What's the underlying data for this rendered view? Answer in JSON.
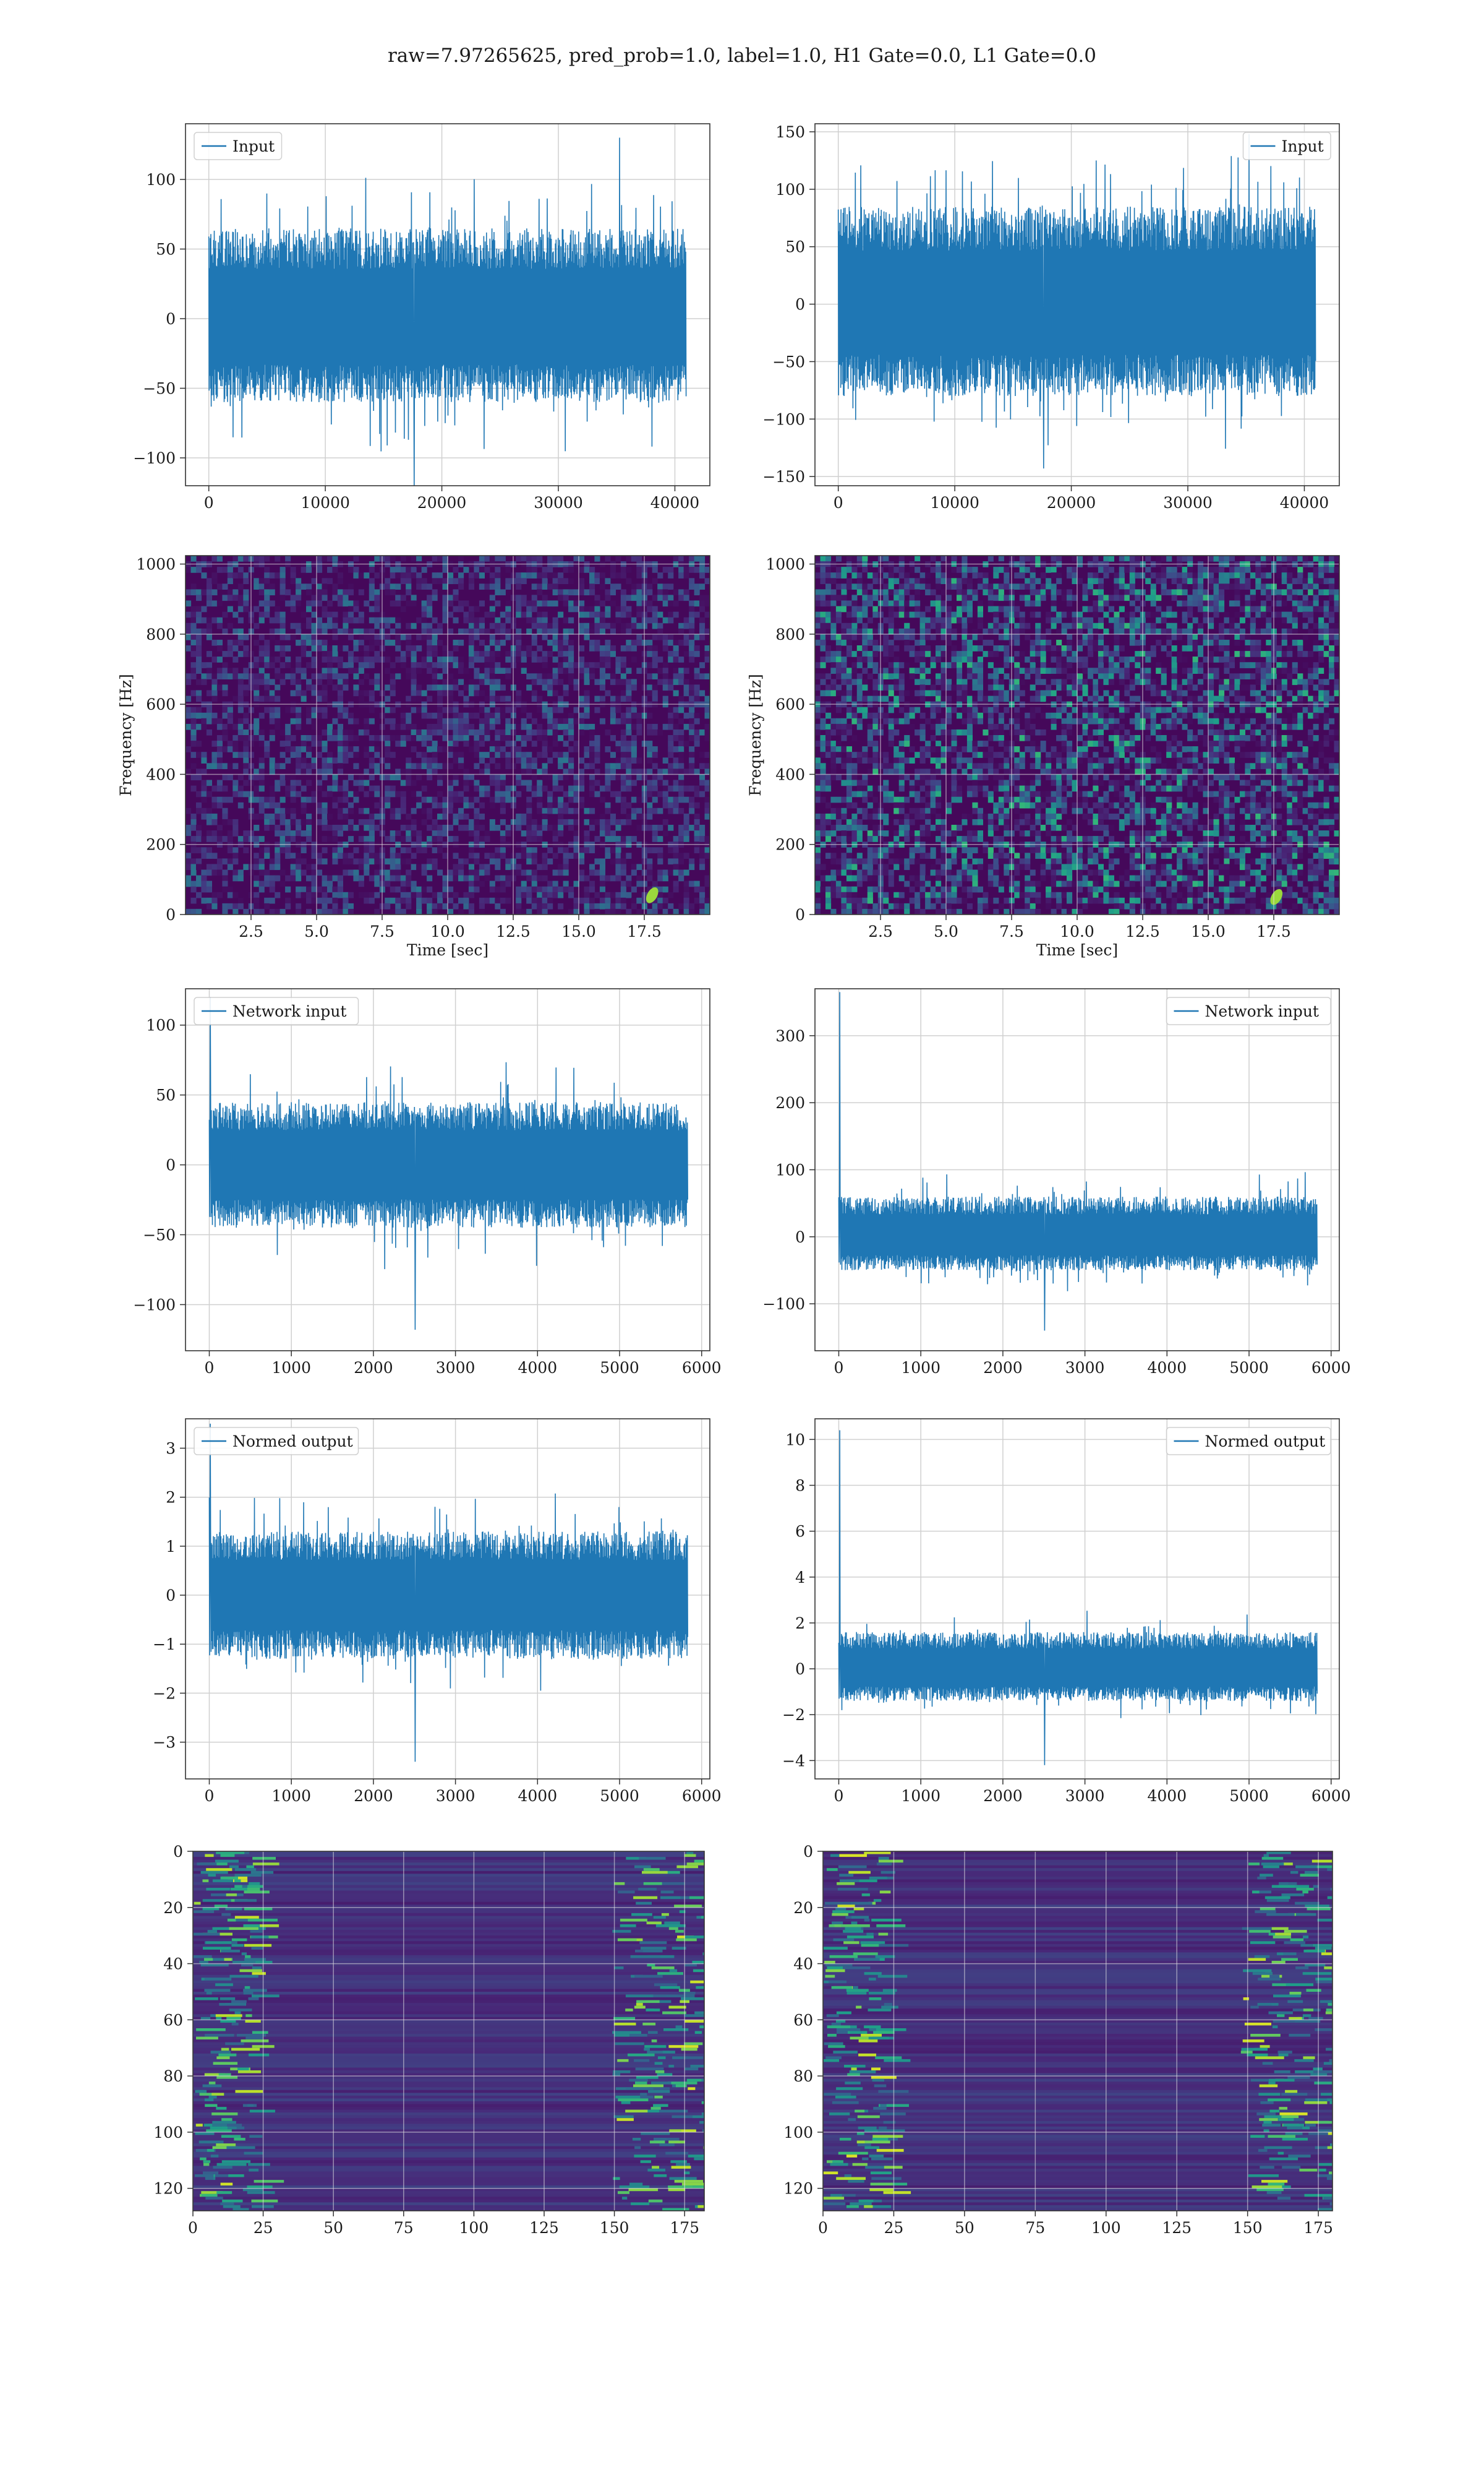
{
  "figure": {
    "suptitle": "raw=7.97265625, pred_prob=1.0, label=1.0, H1 Gate=0.0, L1 Gate=0.0",
    "line_color": "#1f77b4"
  },
  "chart_data": [
    {
      "id": "h1-input",
      "type": "line",
      "column": "left",
      "row": 0,
      "series": [
        {
          "name": "Input"
        }
      ],
      "legend": "upper left",
      "xlim": [
        -2000,
        43000
      ],
      "ylim": [
        -120,
        140
      ],
      "xticks": [
        0,
        10000,
        20000,
        30000,
        40000
      ],
      "yticks": [
        -100,
        -50,
        0,
        50,
        100
      ],
      "x_range": [
        0,
        40960
      ],
      "core_amplitude": [
        -60,
        65
      ],
      "peaks": [
        130,
        -120
      ],
      "grid": true,
      "xlabel": "",
      "ylabel": ""
    },
    {
      "id": "l1-input",
      "type": "line",
      "column": "right",
      "row": 0,
      "series": [
        {
          "name": "Input"
        }
      ],
      "legend": "upper right",
      "xlim": [
        -2000,
        43000
      ],
      "ylim": [
        -158,
        157
      ],
      "xticks": [
        0,
        10000,
        20000,
        30000,
        40000
      ],
      "yticks": [
        -150,
        -100,
        -50,
        0,
        50,
        100,
        150
      ],
      "x_range": [
        0,
        40960
      ],
      "core_amplitude": [
        -80,
        85
      ],
      "peaks": [
        148,
        -143
      ],
      "grid": true,
      "xlabel": "",
      "ylabel": ""
    },
    {
      "id": "h1-spectrogram",
      "type": "heatmap",
      "column": "left",
      "row": 1,
      "xlim": [
        0,
        20
      ],
      "ylim": [
        0,
        1024
      ],
      "xticks": [
        2.5,
        5.0,
        7.5,
        10.0,
        12.5,
        15.0,
        17.5
      ],
      "xtick_labels": [
        "2.5",
        "5.0",
        "7.5",
        "10.0",
        "12.5",
        "15.0",
        "17.5"
      ],
      "yticks": [
        0,
        200,
        400,
        600,
        800,
        1000
      ],
      "xlabel": "Time [sec]",
      "ylabel": "Frequency [Hz]",
      "colormap": "viridis",
      "noise_level": 0.18,
      "hotspot": {
        "time_sec": 17.8,
        "freq_hz": 55
      }
    },
    {
      "id": "l1-spectrogram",
      "type": "heatmap",
      "column": "right",
      "row": 1,
      "xlim": [
        0,
        20
      ],
      "ylim": [
        0,
        1024
      ],
      "xticks": [
        2.5,
        5.0,
        7.5,
        10.0,
        12.5,
        15.0,
        17.5
      ],
      "xtick_labels": [
        "2.5",
        "5.0",
        "7.5",
        "10.0",
        "12.5",
        "15.0",
        "17.5"
      ],
      "yticks": [
        0,
        200,
        400,
        600,
        800,
        1000
      ],
      "xlabel": "Time [sec]",
      "ylabel": "Frequency [Hz]",
      "colormap": "viridis",
      "noise_level": 0.3,
      "hotspot": {
        "time_sec": 17.6,
        "freq_hz": 50
      }
    },
    {
      "id": "h1-network-input",
      "type": "line",
      "column": "left",
      "row": 2,
      "series": [
        {
          "name": "Network input"
        }
      ],
      "legend": "upper left",
      "xlim": [
        -290,
        6100
      ],
      "ylim": [
        -133,
        126
      ],
      "xticks": [
        0,
        1000,
        2000,
        3000,
        4000,
        5000,
        6000
      ],
      "yticks": [
        -100,
        -50,
        0,
        50,
        100
      ],
      "x_range": [
        0,
        5830
      ],
      "core_amplitude": [
        -45,
        45
      ],
      "peaks": [
        120,
        -118
      ],
      "grid": true,
      "xlabel": "",
      "ylabel": ""
    },
    {
      "id": "l1-network-input",
      "type": "line",
      "column": "right",
      "row": 2,
      "series": [
        {
          "name": "Network input"
        }
      ],
      "legend": "upper right",
      "xlim": [
        -290,
        6100
      ],
      "ylim": [
        -170,
        370
      ],
      "xticks": [
        0,
        1000,
        2000,
        3000,
        4000,
        5000,
        6000
      ],
      "yticks": [
        -100,
        0,
        100,
        200,
        300
      ],
      "x_range": [
        0,
        5830
      ],
      "core_amplitude": [
        -50,
        60
      ],
      "peaks": [
        365,
        -140
      ],
      "grid": true,
      "xlabel": "",
      "ylabel": ""
    },
    {
      "id": "h1-normed-output",
      "type": "line",
      "column": "left",
      "row": 3,
      "series": [
        {
          "name": "Normed output"
        }
      ],
      "legend": "upper left",
      "xlim": [
        -290,
        6100
      ],
      "ylim": [
        -3.75,
        3.6
      ],
      "xticks": [
        0,
        1000,
        2000,
        3000,
        4000,
        5000,
        6000
      ],
      "yticks": [
        -3,
        -2,
        -1,
        0,
        1,
        2,
        3
      ],
      "x_range": [
        0,
        5830
      ],
      "core_amplitude": [
        -1.3,
        1.3
      ],
      "peaks": [
        3.5,
        -3.4
      ],
      "grid": true,
      "xlabel": "",
      "ylabel": ""
    },
    {
      "id": "l1-normed-output",
      "type": "line",
      "column": "right",
      "row": 3,
      "series": [
        {
          "name": "Normed output"
        }
      ],
      "legend": "upper right",
      "xlim": [
        -290,
        6100
      ],
      "ylim": [
        -4.8,
        10.9
      ],
      "xticks": [
        0,
        1000,
        2000,
        3000,
        4000,
        5000,
        6000
      ],
      "yticks": [
        -4,
        -2,
        0,
        2,
        4,
        6,
        8,
        10
      ],
      "x_range": [
        0,
        5830
      ],
      "core_amplitude": [
        -1.4,
        1.6
      ],
      "peaks": [
        10.4,
        -4.2
      ],
      "grid": true,
      "xlabel": "",
      "ylabel": ""
    },
    {
      "id": "h1-feature-map",
      "type": "heatmap",
      "column": "left",
      "row": 4,
      "xlim": [
        0,
        182
      ],
      "ylim": [
        128,
        0
      ],
      "xticks": [
        0,
        25,
        50,
        75,
        100,
        125,
        150,
        175
      ],
      "yticks": [
        0,
        20,
        40,
        60,
        80,
        100,
        120
      ],
      "xlabel": "",
      "ylabel": "",
      "colormap": "viridis",
      "bright_regions": "left and right edges"
    },
    {
      "id": "l1-feature-map",
      "type": "heatmap",
      "column": "right",
      "row": 4,
      "xlim": [
        0,
        180
      ],
      "ylim": [
        128,
        0
      ],
      "xticks": [
        0,
        25,
        50,
        75,
        100,
        125,
        150,
        175
      ],
      "yticks": [
        0,
        20,
        40,
        60,
        80,
        100,
        120
      ],
      "xlabel": "",
      "ylabel": "",
      "colormap": "viridis",
      "bright_regions": "left and right edges"
    }
  ]
}
